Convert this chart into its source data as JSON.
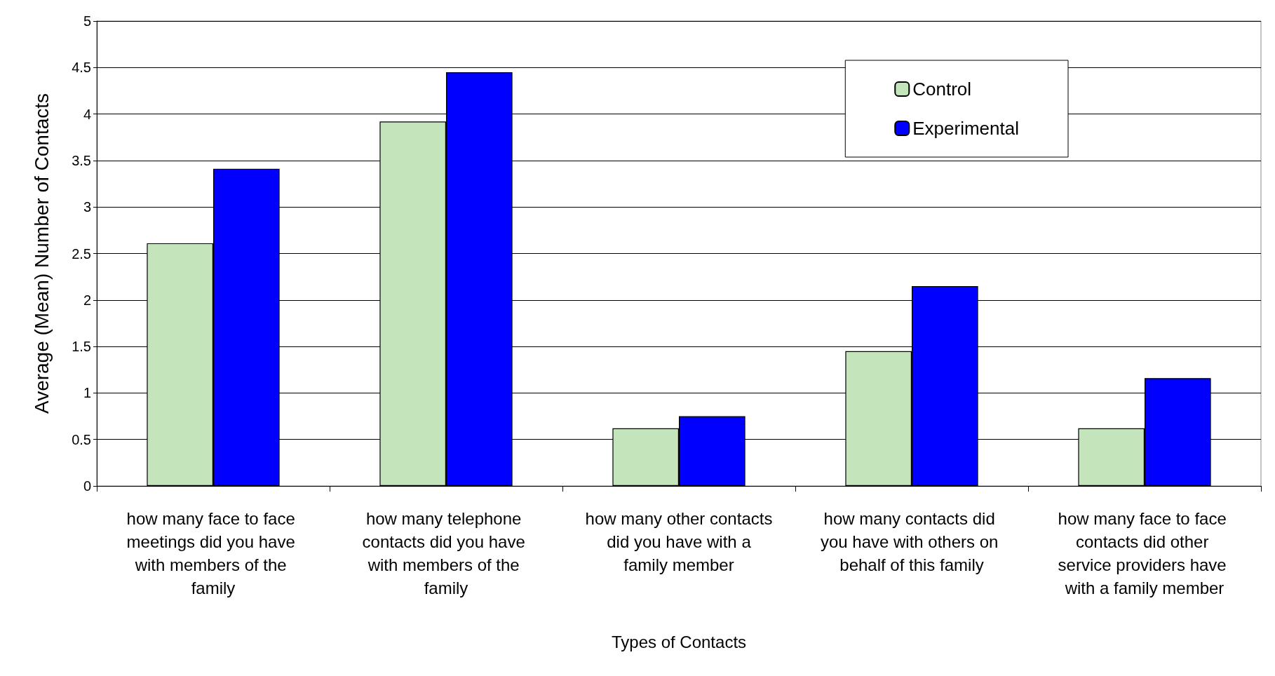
{
  "chart_data": {
    "type": "bar",
    "xlabel": "Types of Contacts",
    "ylabel": "Average (Mean) Number of Contacts",
    "categories": [
      "how many face to face meetings did you have with members of the family",
      "how many telephone contacts did you have with members of the family",
      "how many other contacts did you have with a family member",
      "how many contacts did you have with others on behalf of this family",
      "how many face to face contacts did other service providers have with a family member"
    ],
    "series": [
      {
        "name": "Control",
        "color": "#c4e4bc",
        "values": [
          2.61,
          3.92,
          0.62,
          1.45,
          0.62
        ]
      },
      {
        "name": "Experimental",
        "color": "#0000ff",
        "values": [
          3.41,
          4.45,
          0.75,
          2.15,
          1.16
        ]
      }
    ],
    "ylim": [
      0,
      5
    ],
    "yticks": [
      0,
      0.5,
      1,
      1.5,
      2,
      2.5,
      3,
      3.5,
      4,
      4.5,
      5
    ],
    "grid": "y",
    "legend": "top right"
  }
}
